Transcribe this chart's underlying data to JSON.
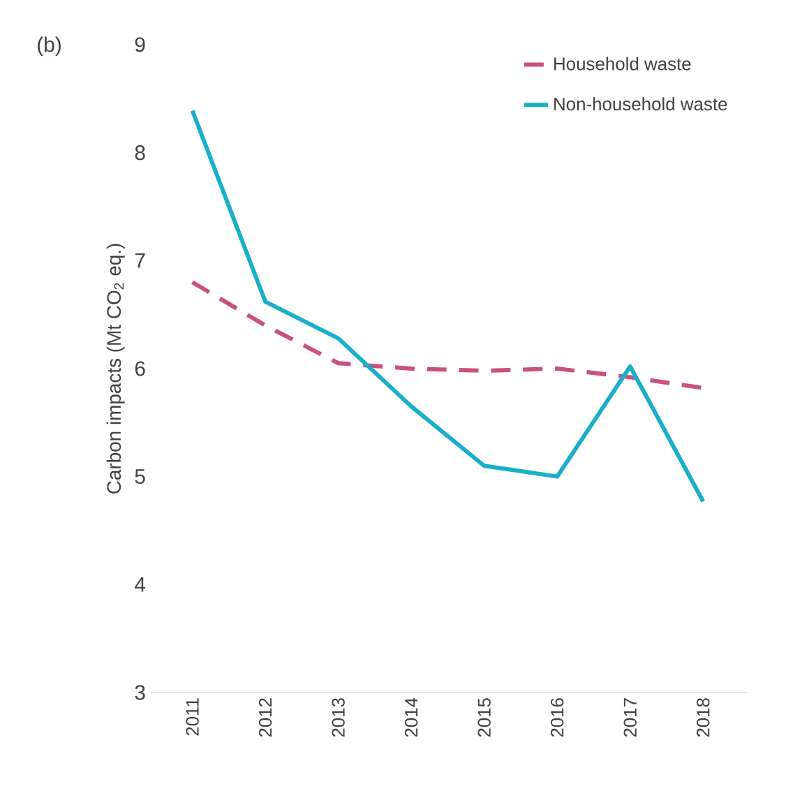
{
  "chart_data": {
    "type": "line",
    "ylabel": "Carbon impacts (Mt CO$_{2}$ eq.)",
    "annotations": [
      "(b)"
    ],
    "categories": [
      "2011",
      "2012",
      "2013",
      "2014",
      "2015",
      "2016",
      "2017",
      "2018"
    ],
    "series": [
      {
        "name": "Household waste",
        "color": "#c9507f",
        "line_style": "dashed",
        "values": [
          6.8,
          6.4,
          6.05,
          6.0,
          5.98,
          6.0,
          5.92,
          5.82
        ]
      },
      {
        "name": "Non-household waste",
        "color": "#1aafc9",
        "line_style": "solid",
        "values": [
          8.39,
          6.62,
          6.28,
          5.65,
          5.1,
          5.0,
          6.02,
          4.77
        ]
      }
    ],
    "ylim": [
      3,
      9
    ],
    "yticks": [
      3,
      4,
      5,
      6,
      7,
      8,
      9
    ],
    "grid": false,
    "legend": "top right",
    "marker": "none"
  }
}
